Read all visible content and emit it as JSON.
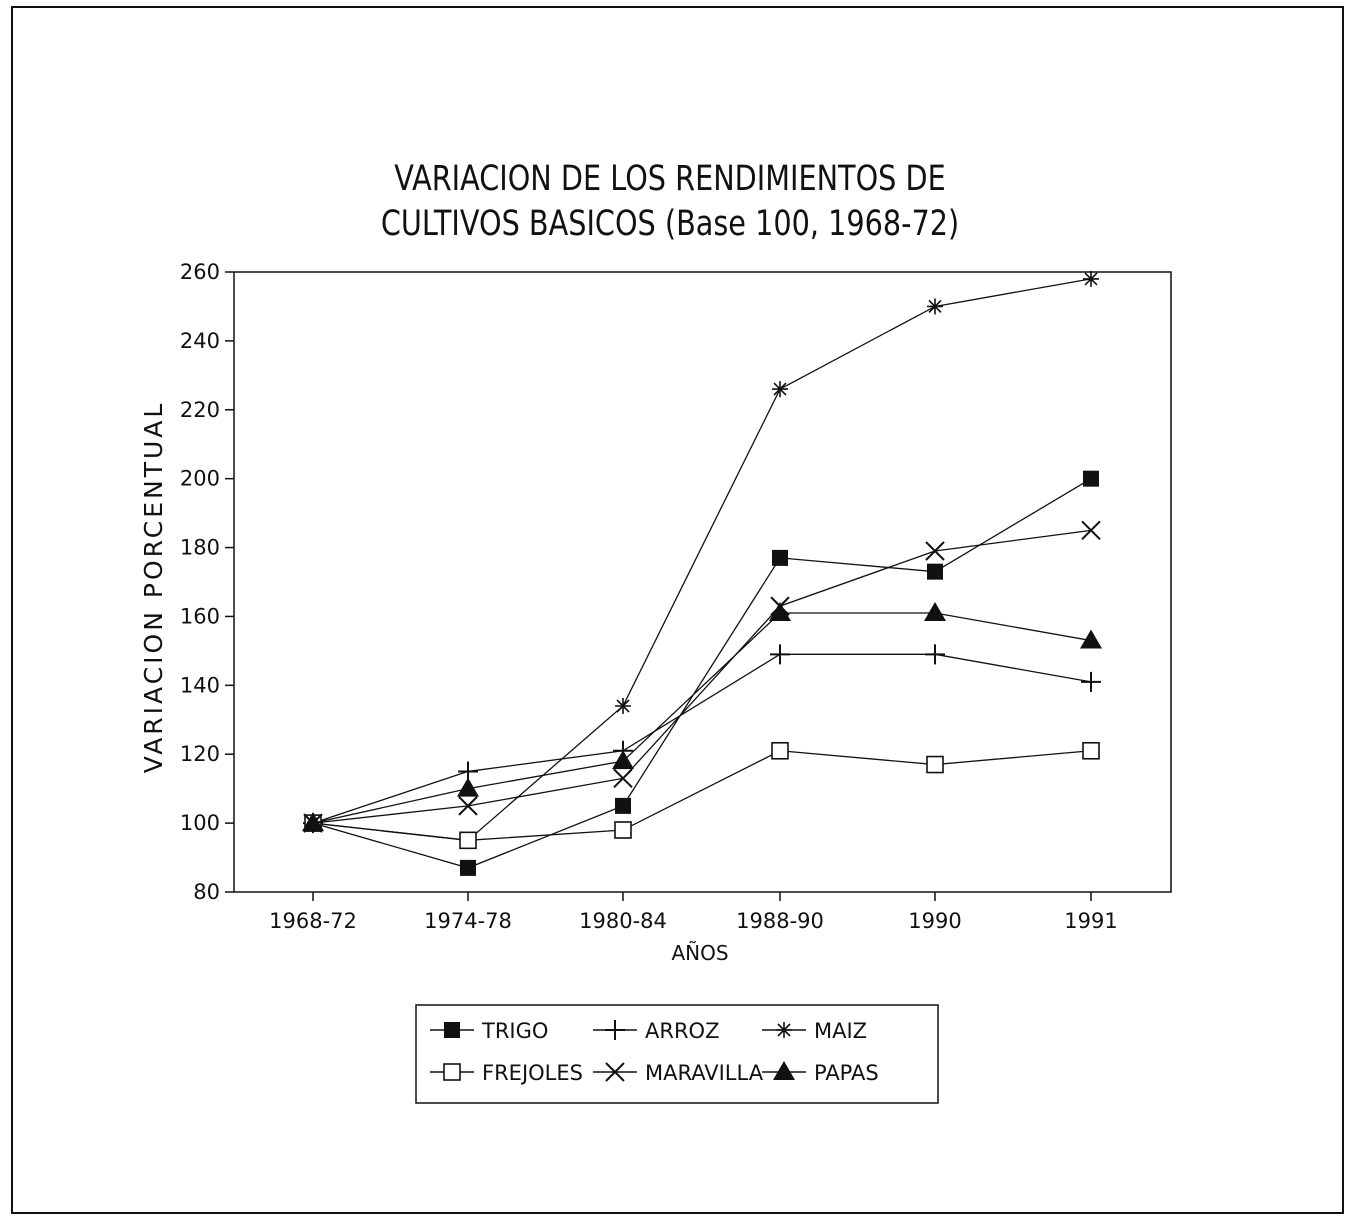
{
  "chart_data": {
    "type": "line",
    "title": [
      "VARIACION DE LOS RENDIMIENTOS DE",
      "CULTIVOS BASICOS  (Base 100,  1968-72)"
    ],
    "xlabel": "AÑOS",
    "ylabel": "VARIACION PORCENTUAL",
    "categories": [
      "1968-72",
      "1974-78",
      "1980-84",
      "1988-90",
      "1990",
      "1991"
    ],
    "ylim": [
      80,
      260
    ],
    "yticks": [
      80,
      100,
      120,
      140,
      160,
      180,
      200,
      220,
      240,
      260
    ],
    "grid": false,
    "legend_position": "bottom",
    "series": [
      {
        "name": "TRIGO",
        "marker": "filled-square",
        "values": [
          100,
          87,
          105,
          177,
          173,
          200
        ]
      },
      {
        "name": "ARROZ",
        "marker": "plus",
        "values": [
          100,
          115,
          121,
          149,
          149,
          141
        ]
      },
      {
        "name": "MAIZ",
        "marker": "asterisk",
        "values": [
          100,
          95,
          134,
          226,
          250,
          258
        ]
      },
      {
        "name": "FREJOLES",
        "marker": "open-square",
        "values": [
          100,
          95,
          98,
          121,
          117,
          121
        ]
      },
      {
        "name": "MARAVILLA",
        "marker": "x",
        "values": [
          100,
          105,
          113,
          163,
          179,
          185
        ]
      },
      {
        "name": "PAPAS",
        "marker": "filled-triangle",
        "values": [
          100,
          110,
          118,
          161,
          161,
          153
        ]
      }
    ]
  },
  "colors": {
    "ink": "#111111",
    "background": "#ffffff"
  }
}
